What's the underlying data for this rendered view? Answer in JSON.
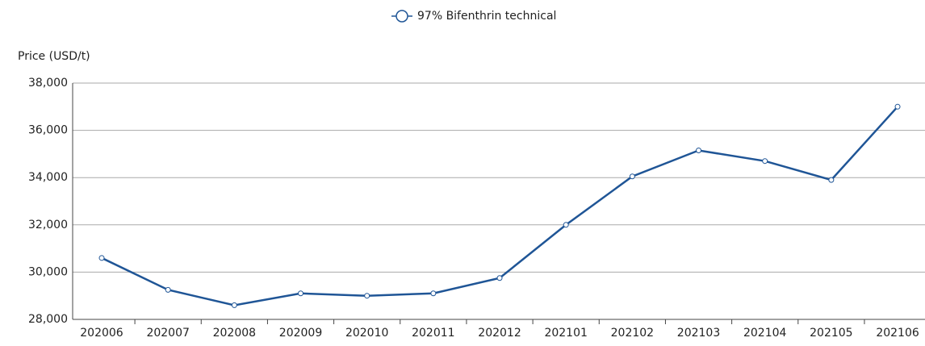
{
  "chart_data": {
    "type": "line",
    "y_label": "Price (USD/t)",
    "categories": [
      "202006",
      "202007",
      "202008",
      "202009",
      "202010",
      "202011",
      "202012",
      "202101",
      "202102",
      "202103",
      "202104",
      "202105",
      "202106"
    ],
    "series": [
      {
        "name": "97% Bifenthrin technical",
        "color": "#1f5596",
        "values": [
          30600,
          29250,
          28600,
          29100,
          29000,
          29100,
          29750,
          32000,
          34050,
          35150,
          34700,
          33900,
          37000
        ]
      }
    ],
    "ylim": [
      28000,
      38000
    ],
    "yticks": [
      {
        "value": 28000,
        "label": "28,000"
      },
      {
        "value": 30000,
        "label": "30,000"
      },
      {
        "value": 32000,
        "label": "32,000"
      },
      {
        "value": 34000,
        "label": "34,000"
      },
      {
        "value": 36000,
        "label": "36,000"
      },
      {
        "value": 38000,
        "label": "38,000"
      }
    ],
    "grid": true,
    "legend": "top"
  }
}
